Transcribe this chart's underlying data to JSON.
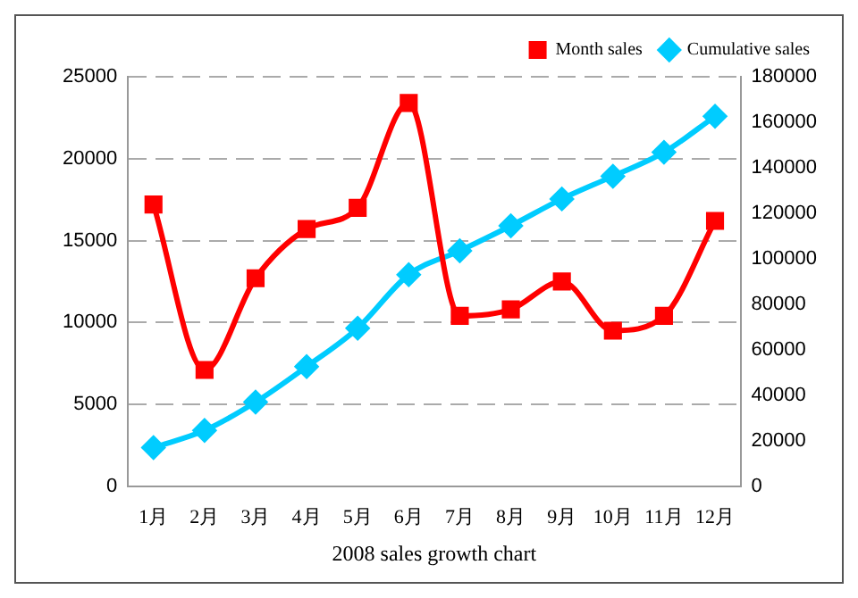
{
  "chart_data": {
    "type": "line",
    "xlabel": "2008 sales growth chart",
    "categories": [
      "1月",
      "2月",
      "3月",
      "4月",
      "5月",
      "6月",
      "7月",
      "8月",
      "9月",
      "10月",
      "11月",
      "12月"
    ],
    "series": [
      {
        "name": "Month sales",
        "color": "#ff0000",
        "marker": "square",
        "values": [
          17200,
          7100,
          12700,
          15700,
          17000,
          23400,
          10400,
          10800,
          12500,
          9500,
          10400,
          16200
        ]
      },
      {
        "name": "Cumulative sales",
        "color": "#00ccff",
        "marker": "diamond",
        "axis": "y2",
        "values": [
          17000,
          24500,
          37000,
          52600,
          69500,
          93000,
          103500,
          114500,
          126300,
          136300,
          146800,
          162600
        ]
      }
    ],
    "ylim": [
      0,
      25000
    ],
    "yticks": [
      0,
      5000,
      10000,
      15000,
      20000,
      25000
    ],
    "y2lim": [
      0,
      180000
    ],
    "y2ticks": [
      0,
      20000,
      40000,
      60000,
      80000,
      100000,
      120000,
      140000,
      160000,
      180000
    ],
    "grid": "y",
    "legend": "top right"
  }
}
